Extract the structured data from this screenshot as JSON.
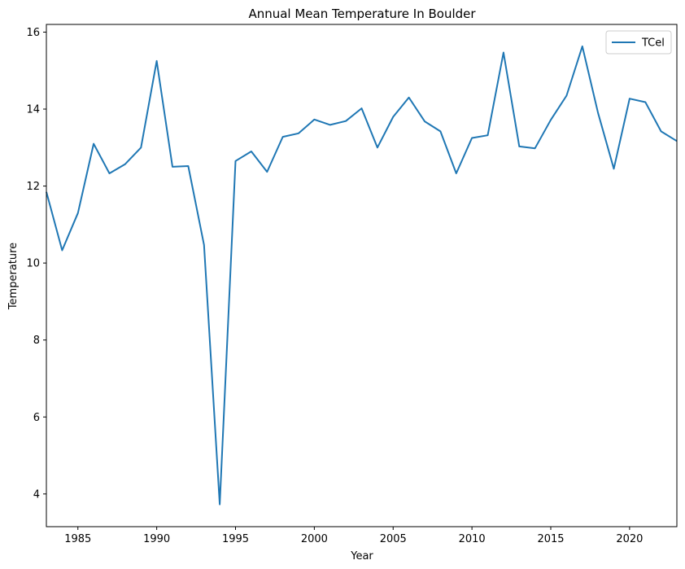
{
  "chart_data": {
    "type": "line",
    "title": "Annual Mean Temperature In Boulder",
    "xlabel": "Year",
    "ylabel": "Temperature",
    "xlim": [
      1983,
      2023
    ],
    "ylim": [
      3.15,
      16.2
    ],
    "xticks": [
      1985,
      1990,
      1995,
      2000,
      2005,
      2010,
      2015,
      2020
    ],
    "yticks": [
      4,
      6,
      8,
      10,
      12,
      14,
      16
    ],
    "grid": false,
    "legend": "top-right",
    "series": [
      {
        "name": "TCel",
        "color": "#1f77b4",
        "x": [
          1983,
          1984,
          1985,
          1986,
          1987,
          1988,
          1989,
          1990,
          1991,
          1992,
          1993,
          1994,
          1995,
          1996,
          1997,
          1998,
          1999,
          2000,
          2001,
          2002,
          2003,
          2004,
          2005,
          2006,
          2007,
          2008,
          2009,
          2010,
          2011,
          2012,
          2013,
          2014,
          2015,
          2016,
          2017,
          2018,
          2019,
          2020,
          2021,
          2022,
          2023
        ],
        "values": [
          11.85,
          10.33,
          11.3,
          13.1,
          12.33,
          12.57,
          13.0,
          15.25,
          12.5,
          12.52,
          10.47,
          3.73,
          12.65,
          12.9,
          12.37,
          13.28,
          13.37,
          13.73,
          13.59,
          13.69,
          14.02,
          13.0,
          13.8,
          14.3,
          13.68,
          13.42,
          12.33,
          13.25,
          13.32,
          15.47,
          13.03,
          12.98,
          13.72,
          14.35,
          15.63,
          13.9,
          12.45,
          14.27,
          14.18,
          13.42,
          13.17
        ]
      }
    ]
  }
}
